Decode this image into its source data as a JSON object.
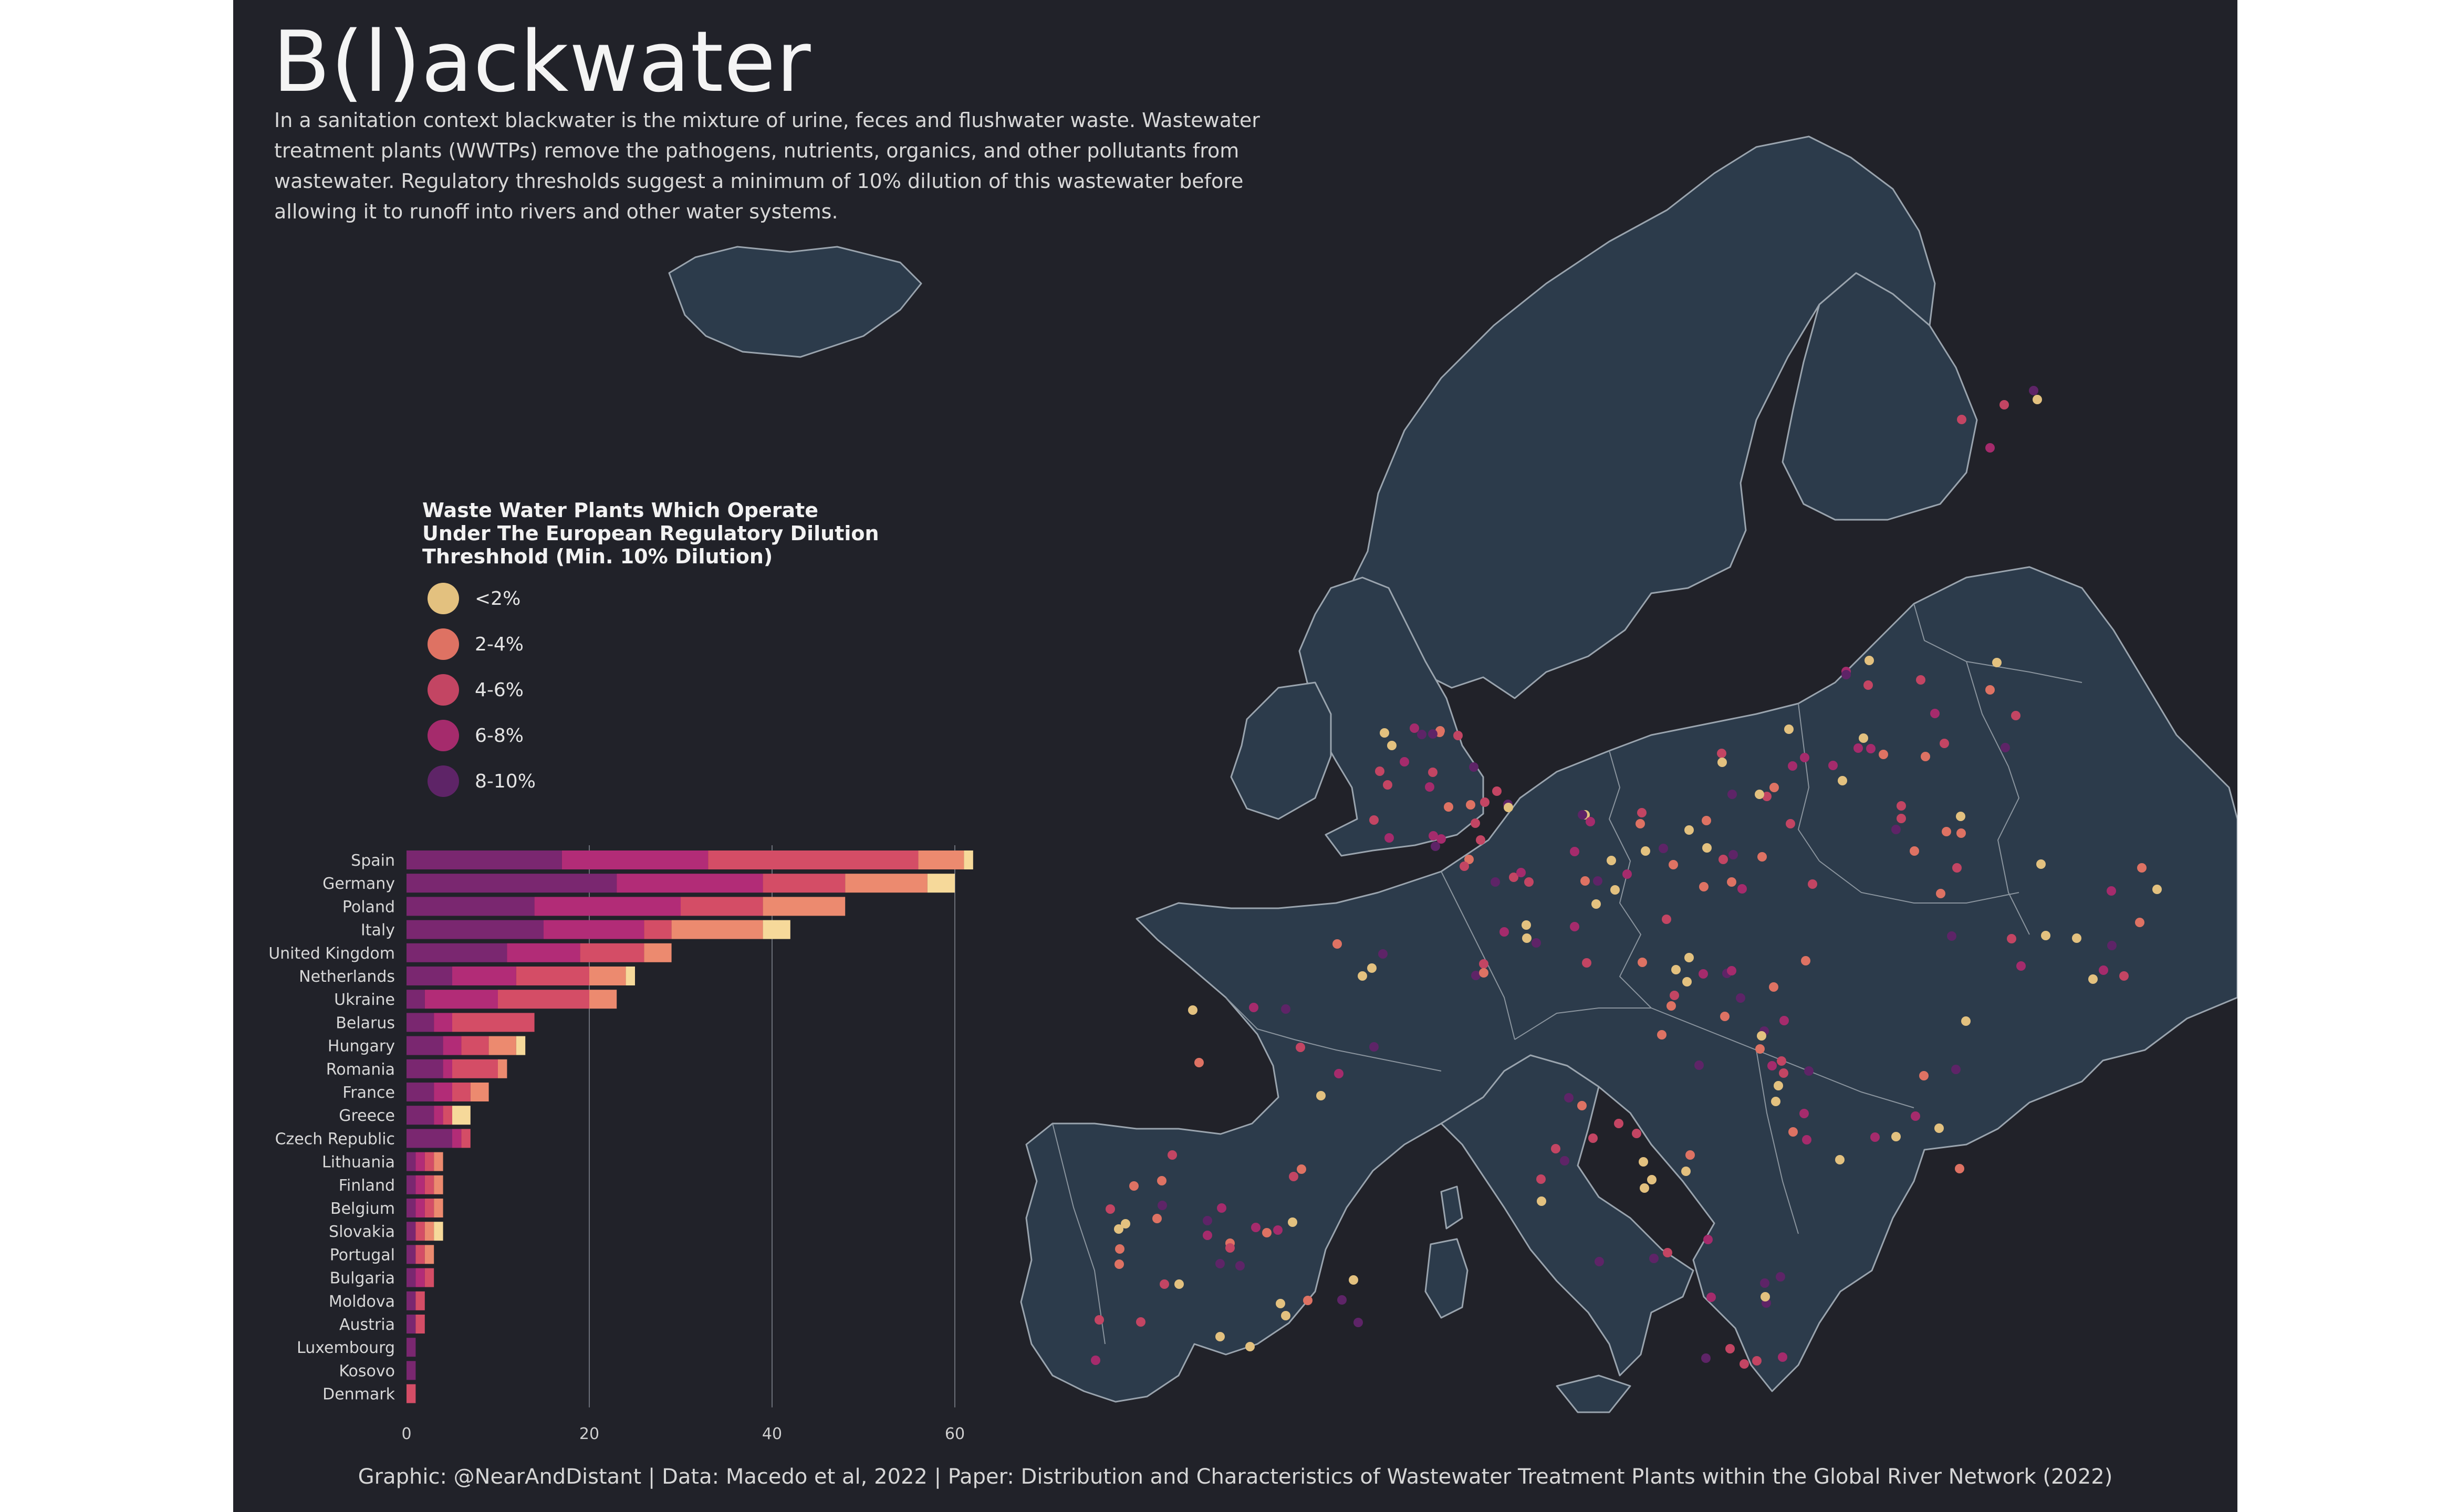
{
  "title": "B(l)ackwater",
  "subtitle": "In a sanitation context blackwater is the mixture of urine, feces and flushwater waste. Wastewater treatment plants (WWTPs) remove the pathogens, nutrients, organics, and other pollutants from wastewater. Regulatory thresholds suggest a minimum of 10% dilution of this wastewater before allowing it to runoff into rivers and other water systems.",
  "legend": {
    "title": "Waste Water Plants Which Operate\nUnder The European Regulatory Dilution\nThreshhold (Min. 10% Dilution)",
    "items": [
      {
        "label": "<2%",
        "color": "#e3c17f"
      },
      {
        "label": "2-4%",
        "color": "#de7263"
      },
      {
        "label": "4-6%",
        "color": "#c34563"
      },
      {
        "label": "6-8%",
        "color": "#a52b6c"
      },
      {
        "label": "8-10%",
        "color": "#5e2467"
      }
    ]
  },
  "credits": "Graphic: @NearAndDistant | Data: Macedo et al, 2022 | Paper: Distribution and Characteristics of Wastewater Treatment Plants within the Global River Network (2022)",
  "colors": {
    "background": "#212229",
    "land": "#2c3b4b",
    "border": "#9aa4ae",
    "bar_8_10": "#7a2770",
    "bar_6_8": "#b22c77",
    "bar_4_6": "#d44d66",
    "bar_2_4": "#ec8a6f",
    "bar_under_2": "#f6d99a"
  },
  "chart_data": {
    "type": "bar",
    "orientation": "horizontal",
    "stacked": true,
    "categories": [
      "Spain",
      "Germany",
      "Poland",
      "Italy",
      "United Kingdom",
      "Netherlands",
      "Ukraine",
      "Belarus",
      "Hungary",
      "Romania",
      "France",
      "Greece",
      "Czech Republic",
      "Lithuania",
      "Finland",
      "Belgium",
      "Slovakia",
      "Portugal",
      "Bulgaria",
      "Moldova",
      "Austria",
      "Luxembourg",
      "Kosovo",
      "Denmark"
    ],
    "series": [
      {
        "name": "8-10%",
        "values": [
          17,
          23,
          14,
          15,
          11,
          5,
          2,
          3,
          4,
          4,
          3,
          3,
          5,
          1,
          1,
          1,
          1,
          1,
          1,
          1,
          1,
          1,
          1,
          0
        ]
      },
      {
        "name": "6-8%",
        "values": [
          16,
          16,
          16,
          11,
          8,
          7,
          8,
          2,
          2,
          1,
          2,
          1,
          1,
          1,
          1,
          1,
          0,
          0,
          1,
          0,
          0,
          0,
          0,
          0
        ]
      },
      {
        "name": "4-6%",
        "values": [
          23,
          9,
          9,
          3,
          7,
          8,
          10,
          9,
          3,
          5,
          2,
          1,
          1,
          1,
          1,
          1,
          1,
          1,
          1,
          1,
          1,
          0,
          0,
          1
        ]
      },
      {
        "name": "2-4%",
        "values": [
          5,
          9,
          9,
          10,
          3,
          4,
          3,
          0,
          3,
          1,
          2,
          0,
          0,
          1,
          1,
          1,
          1,
          1,
          0,
          0,
          0,
          0,
          0,
          0
        ]
      },
      {
        "name": "<2%",
        "values": [
          1,
          3,
          0,
          3,
          0,
          1,
          0,
          0,
          1,
          0,
          0,
          2,
          0,
          0,
          0,
          0,
          1,
          0,
          0,
          0,
          0,
          0,
          0,
          0
        ]
      }
    ],
    "xticks": [
      0,
      20,
      40,
      60
    ],
    "xlim": [
      0,
      62
    ],
    "grid": "vertical"
  },
  "map": {
    "region": "Europe",
    "point_note": "wastewater treatment plant locations coloured by dilution class"
  }
}
